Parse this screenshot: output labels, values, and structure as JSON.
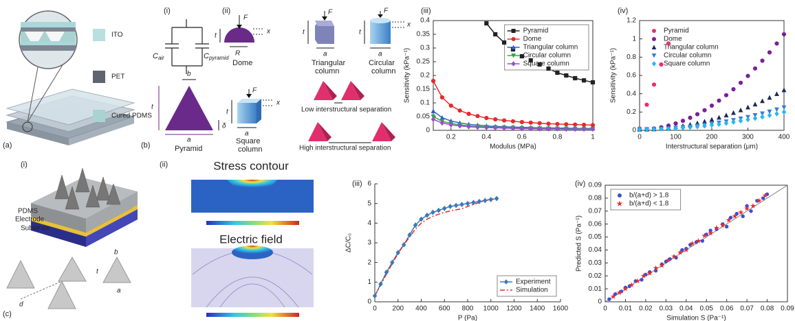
{
  "panels": {
    "a": "(a)",
    "b": "(b)",
    "c": "(c)"
  },
  "materials": [
    "ITO",
    "PET",
    "Cured PDMS"
  ],
  "circuit": {
    "label": "(i)",
    "c1": "C",
    "c1_sub": "air",
    "c2": "C",
    "c2_sub": "pyramid"
  },
  "shapes": {
    "label": "(ii)",
    "dome": "Dome",
    "triangular": [
      "Triangular",
      "column"
    ],
    "circular": [
      "Circular",
      "column"
    ],
    "pyramid": "Pyramid",
    "square": [
      "Square",
      "column"
    ],
    "low": "Low interstructural separation",
    "high": "High interstructural separation"
  },
  "symbols": {
    "F": "F",
    "x": "x",
    "t": "t",
    "R": "R",
    "a": "a",
    "b": "b",
    "delta": "δ",
    "d": "d"
  },
  "device": {
    "label": "(i)",
    "layers": [
      "PDMS",
      "Electrode",
      "Substrate"
    ]
  },
  "simulation": {
    "label": "(ii)",
    "stress": "Stress contour",
    "field": "Electric field"
  },
  "chart_data": [
    {
      "type": "line",
      "panel": "(iii)",
      "x_label": "Modulus (MPa)",
      "y_label": "Sensitivity (kPa⁻¹)",
      "x": [
        0.1,
        0.15,
        0.2,
        0.25,
        0.3,
        0.35,
        0.4,
        0.45,
        0.5,
        0.55,
        0.6,
        0.65,
        0.7,
        0.75,
        0.8,
        0.85,
        0.9,
        0.95,
        1
      ],
      "xlim": [
        0.1,
        1
      ],
      "xticks": [
        0.2,
        0.4,
        0.6,
        0.8,
        1
      ],
      "ylim": [
        0,
        0.4
      ],
      "yticks": [
        0,
        0.05,
        0.1,
        0.15,
        0.2,
        0.25,
        0.3,
        0.35,
        0.4
      ],
      "line": true,
      "frame": true,
      "legend": "upper right",
      "legend_box": true,
      "series": [
        {
          "name": "Pyramid",
          "color": "#222222",
          "marker": "square",
          "values": [
            null,
            null,
            null,
            null,
            null,
            null,
            0.39,
            0.35,
            0.32,
            0.295,
            0.27,
            0.255,
            0.24,
            0.225,
            0.21,
            0.2,
            0.19,
            0.182,
            0.175
          ]
        },
        {
          "name": "Dome",
          "color": "#e8282b",
          "marker": "circle",
          "values": [
            0.18,
            0.12,
            0.09,
            0.072,
            0.06,
            0.052,
            0.045,
            0.04,
            0.036,
            0.033,
            0.03,
            0.028,
            0.026,
            0.024,
            0.023,
            0.022,
            0.021,
            0.02,
            0.019
          ]
        },
        {
          "name": "Triangular column",
          "color": "#2f5fd0",
          "marker": "triangle",
          "values": [
            0.07,
            0.046,
            0.034,
            0.027,
            0.022,
            0.019,
            0.016,
            0.014,
            0.013,
            0.012,
            0.011,
            0.01,
            0.009,
            0.009,
            0.008,
            0.008,
            0.007,
            0.007,
            0.007
          ]
        },
        {
          "name": "Circular column",
          "color": "#2ea84a",
          "marker": "triangle-down",
          "values": [
            0.05,
            0.033,
            0.025,
            0.02,
            0.016,
            0.014,
            0.012,
            0.011,
            0.01,
            0.009,
            0.008,
            0.007,
            0.007,
            0.006,
            0.006,
            0.006,
            0.005,
            0.005,
            0.005
          ]
        },
        {
          "name": "Square column",
          "color": "#9b4fc4",
          "marker": "diamond",
          "values": [
            0.04,
            0.027,
            0.02,
            0.016,
            0.013,
            0.011,
            0.01,
            0.009,
            0.008,
            0.007,
            0.006,
            0.006,
            0.005,
            0.005,
            0.005,
            0.004,
            0.004,
            0.004,
            0.004
          ]
        }
      ]
    },
    {
      "type": "line",
      "panel": "(iv)",
      "x_label": "Interstructural separation (μm)",
      "y_label": "Sensitivity (kPa⁻¹)",
      "x": [
        0,
        20,
        40,
        60,
        80,
        100,
        120,
        140,
        160,
        180,
        200,
        220,
        240,
        260,
        280,
        300,
        320,
        340,
        360,
        380,
        400
      ],
      "xlim": [
        0,
        400
      ],
      "xticks": [
        0,
        100,
        200,
        300,
        400
      ],
      "ylim": [
        0,
        1.2
      ],
      "yticks": [
        0,
        0.2,
        0.4,
        0.6,
        0.8,
        1,
        1.2
      ],
      "line": false,
      "frame": true,
      "legend": "upper left",
      "legend_box": false,
      "series": [
        {
          "name": "Pyramid",
          "color": "#e8306c",
          "marker": "circle",
          "values": [
            0.02,
            0.28,
            0.5,
            0.72,
            0.95,
            null,
            null,
            null,
            null,
            null,
            null,
            null,
            null,
            null,
            null,
            null,
            null,
            null,
            null,
            null,
            null
          ]
        },
        {
          "name": "Dome",
          "color": "#7b1f9a",
          "marker": "circle",
          "values": [
            0.01,
            0.013,
            0.02,
            0.033,
            0.052,
            0.075,
            0.104,
            0.137,
            0.176,
            0.22,
            0.27,
            0.325,
            0.384,
            0.449,
            0.52,
            0.595,
            0.676,
            0.761,
            0.852,
            0.949,
            1.05
          ]
        },
        {
          "name": "Triangular column",
          "color": "#1c2a5c",
          "marker": "triangle",
          "values": [
            0.01,
            0.011,
            0.014,
            0.02,
            0.027,
            0.037,
            0.049,
            0.063,
            0.079,
            0.097,
            0.118,
            0.14,
            0.165,
            0.192,
            0.221,
            0.252,
            0.285,
            0.321,
            0.358,
            0.398,
            0.44
          ]
        },
        {
          "name": "Circular column",
          "color": "#3a7bd5",
          "marker": "triangle-down",
          "values": [
            0.01,
            0.011,
            0.012,
            0.015,
            0.019,
            0.025,
            0.032,
            0.039,
            0.048,
            0.059,
            0.07,
            0.083,
            0.096,
            0.111,
            0.128,
            0.145,
            0.164,
            0.183,
            0.204,
            0.227,
            0.25
          ]
        },
        {
          "name": "Square column",
          "color": "#29b6f6",
          "marker": "diamond",
          "values": [
            0.01,
            0.01,
            0.012,
            0.014,
            0.017,
            0.022,
            0.027,
            0.033,
            0.04,
            0.048,
            0.058,
            0.067,
            0.078,
            0.09,
            0.103,
            0.117,
            0.131,
            0.147,
            0.164,
            0.181,
            0.2
          ]
        }
      ]
    },
    {
      "type": "line",
      "panel": "(iii)",
      "x_label": "P (Pa)",
      "y_label": "ΔC/C₀",
      "x": [
        0,
        50,
        100,
        150,
        200,
        250,
        300,
        350,
        400,
        450,
        500,
        550,
        600,
        650,
        700,
        750,
        800,
        850,
        900,
        950,
        1000,
        1050
      ],
      "xlim": [
        0,
        1600
      ],
      "xticks": [
        0,
        200,
        400,
        600,
        800,
        1000,
        1200,
        1400,
        1600
      ],
      "ylim": [
        0,
        6
      ],
      "yticks": [
        0,
        1,
        2,
        3,
        4,
        5,
        6
      ],
      "line": true,
      "frame": false,
      "legend": "lower right",
      "legend_box": true,
      "series": [
        {
          "name": "Experiment",
          "color": "#3a78b8",
          "marker": "diamond",
          "dash": "solid",
          "values": [
            0.3,
            0.9,
            1.5,
            2,
            2.5,
            2.9,
            3.4,
            3.9,
            4.2,
            4.4,
            4.55,
            4.65,
            4.75,
            4.85,
            4.9,
            4.95,
            5,
            5.05,
            5.1,
            5.15,
            5.2,
            5.25
          ]
        },
        {
          "name": "Simulation",
          "color": "#e02a2a",
          "marker": "none",
          "dash": "dashdot",
          "values": [
            0.3,
            0.85,
            1.4,
            1.95,
            2.45,
            2.9,
            3.3,
            3.7,
            4,
            4.2,
            4.35,
            4.45,
            4.55,
            4.62,
            4.68,
            4.73,
            4.85,
            4.95,
            5.05,
            5.15,
            5.22,
            5.28
          ]
        }
      ]
    },
    {
      "type": "scatter",
      "panel": "(iv)",
      "x_label": "Simulation S (Pa⁻¹)",
      "y_label": "Predicted S (Pa⁻¹)",
      "xlim": [
        0,
        0.09
      ],
      "xticks": [
        0,
        0.01,
        0.02,
        0.03,
        0.04,
        0.05,
        0.06,
        0.07,
        0.08,
        0.09
      ],
      "ylim": [
        0,
        0.09
      ],
      "yticks": [
        0,
        0.01,
        0.02,
        0.03,
        0.04,
        0.05,
        0.06,
        0.07,
        0.08,
        0.09
      ],
      "line": false,
      "frame": true,
      "legend": "upper left",
      "legend_box": true,
      "series": [
        {
          "name": "b/(a+d) > 1.8",
          "color": "#3b4fd8",
          "marker": "circle",
          "x": [
            0.002,
            0.005,
            0.008,
            0.01,
            0.012,
            0.015,
            0.018,
            0.02,
            0.022,
            0.025,
            0.028,
            0.03,
            0.032,
            0.035,
            0.038,
            0.04,
            0.042,
            0.045,
            0.048,
            0.05,
            0.052,
            0.055,
            0.058,
            0.06,
            0.062,
            0.065,
            0.068,
            0.07,
            0.072,
            0.075,
            0.078,
            0.08
          ],
          "values": [
            0.002,
            0.006,
            0.008,
            0.011,
            0.012,
            0.016,
            0.017,
            0.021,
            0.023,
            0.024,
            0.029,
            0.031,
            0.033,
            0.034,
            0.04,
            0.041,
            0.044,
            0.046,
            0.047,
            0.052,
            0.055,
            0.056,
            0.06,
            0.058,
            0.065,
            0.068,
            0.066,
            0.074,
            0.07,
            0.078,
            0.08,
            0.083
          ]
        },
        {
          "name": "b/(a+d) < 1.8",
          "color": "#e8282b",
          "marker": "star",
          "x": [
            0.004,
            0.007,
            0.01,
            0.013,
            0.016,
            0.019,
            0.022,
            0.025,
            0.028,
            0.031,
            0.034,
            0.037,
            0.04,
            0.043,
            0.046,
            0.049,
            0.052,
            0.055,
            0.058,
            0.061,
            0.064,
            0.067,
            0.07,
            0.073,
            0.076,
            0.079
          ],
          "values": [
            0.004,
            0.007,
            0.01,
            0.013,
            0.016,
            0.02,
            0.022,
            0.026,
            0.028,
            0.032,
            0.035,
            0.038,
            0.04,
            0.045,
            0.047,
            0.051,
            0.053,
            0.057,
            0.059,
            0.063,
            0.066,
            0.069,
            0.072,
            0.074,
            0.078,
            0.082
          ]
        }
      ]
    }
  ]
}
